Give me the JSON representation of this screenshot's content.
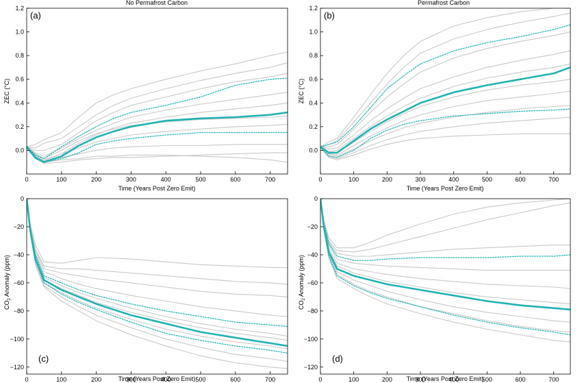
{
  "colors": {
    "ensemble": "#c8c8c8",
    "median": "#20b2b2",
    "axis": "#000000"
  },
  "chart_data": [
    {
      "id": "a",
      "type": "line",
      "panel_label": "(a)",
      "title": "No Permafrost Carbon",
      "xlabel": "Time (Years Post Zero Emit)",
      "ylabel": "ZEC (°C)",
      "xlim": [
        0,
        750
      ],
      "ylim": [
        -0.2,
        1.2
      ],
      "xticks": [
        0,
        100,
        200,
        300,
        400,
        500,
        600,
        700
      ],
      "yticks": [
        0.0,
        0.2,
        0.4,
        0.6,
        0.8,
        1.0,
        1.2
      ],
      "ytick_labels": [
        "0.0",
        "0.2",
        "0.4",
        "0.6",
        "0.8",
        "1.0",
        "1.2"
      ],
      "x": [
        0,
        25,
        50,
        100,
        150,
        200,
        250,
        300,
        400,
        500,
        600,
        700,
        750
      ],
      "series": [
        {
          "style": "median",
          "values": [
            0.03,
            -0.06,
            -0.1,
            -0.05,
            0.04,
            0.11,
            0.16,
            0.2,
            0.25,
            0.27,
            0.28,
            0.3,
            0.32
          ]
        },
        {
          "style": "bound",
          "values": [
            0.03,
            -0.04,
            -0.07,
            0.03,
            0.12,
            0.2,
            0.27,
            0.32,
            0.38,
            0.45,
            0.55,
            0.6,
            0.61
          ]
        },
        {
          "style": "bound",
          "values": [
            0.02,
            -0.07,
            -0.1,
            -0.07,
            -0.02,
            0.05,
            0.08,
            0.1,
            0.13,
            0.15,
            0.15,
            0.15,
            0.15
          ]
        },
        {
          "style": "ensemble",
          "values": [
            0.03,
            0.05,
            0.09,
            0.15,
            0.28,
            0.4,
            0.47,
            0.52,
            0.6,
            0.67,
            0.73,
            0.8,
            0.83
          ]
        },
        {
          "style": "ensemble",
          "values": [
            0.03,
            0.02,
            0.06,
            0.1,
            0.2,
            0.3,
            0.38,
            0.44,
            0.52,
            0.59,
            0.65,
            0.7,
            0.74
          ]
        },
        {
          "style": "ensemble",
          "values": [
            0.03,
            0.0,
            0.0,
            0.05,
            0.15,
            0.25,
            0.32,
            0.38,
            0.45,
            0.52,
            0.58,
            0.62,
            0.65
          ]
        },
        {
          "style": "ensemble",
          "values": [
            0.03,
            -0.02,
            -0.05,
            0.02,
            0.1,
            0.17,
            0.23,
            0.28,
            0.34,
            0.39,
            0.43,
            0.47,
            0.49
          ]
        },
        {
          "style": "ensemble",
          "values": [
            0.03,
            -0.04,
            -0.08,
            -0.03,
            0.06,
            0.13,
            0.19,
            0.23,
            0.28,
            0.32,
            0.35,
            0.38,
            0.4
          ]
        },
        {
          "style": "ensemble",
          "values": [
            0.03,
            -0.03,
            -0.07,
            0.0,
            0.08,
            0.14,
            0.18,
            0.21,
            0.24,
            0.26,
            0.27,
            0.28,
            0.29
          ]
        },
        {
          "style": "ensemble",
          "values": [
            0.03,
            -0.05,
            -0.09,
            -0.03,
            0.02,
            0.07,
            0.1,
            0.13,
            0.16,
            0.18,
            0.2,
            0.21,
            0.22
          ]
        },
        {
          "style": "ensemble",
          "values": [
            0.02,
            -0.05,
            -0.09,
            -0.06,
            -0.03,
            0.0,
            0.02,
            0.03,
            0.04,
            0.04,
            0.05,
            0.05,
            0.05
          ]
        },
        {
          "style": "ensemble",
          "values": [
            0.02,
            -0.06,
            -0.1,
            -0.08,
            -0.07,
            -0.05,
            -0.05,
            -0.04,
            -0.04,
            -0.05,
            -0.06,
            -0.08,
            -0.1
          ]
        },
        {
          "style": "ensemble",
          "values": [
            0.02,
            -0.07,
            -0.11,
            -0.1,
            -0.08,
            -0.07,
            -0.06,
            -0.06,
            -0.05,
            -0.04,
            -0.03,
            -0.02,
            -0.02
          ]
        }
      ]
    },
    {
      "id": "b",
      "type": "line",
      "panel_label": "(b)",
      "title": "Permafrost Carbon",
      "xlabel": "Time (Years Post Zero Emit)",
      "ylabel": "ZEC (°C)",
      "xlim": [
        0,
        750
      ],
      "ylim": [
        -0.2,
        1.2
      ],
      "xticks": [
        0,
        100,
        200,
        300,
        400,
        500,
        600,
        700
      ],
      "yticks": [
        0.0,
        0.2,
        0.4,
        0.6,
        0.8,
        1.0,
        1.2
      ],
      "ytick_labels": [
        "0.0",
        "0.2",
        "0.4",
        "0.6",
        "0.8",
        "1.0",
        "1.2"
      ],
      "x": [
        0,
        25,
        50,
        100,
        150,
        200,
        250,
        300,
        400,
        500,
        600,
        700,
        750
      ],
      "series": [
        {
          "style": "median",
          "values": [
            0.03,
            -0.02,
            -0.02,
            0.08,
            0.18,
            0.26,
            0.33,
            0.4,
            0.49,
            0.55,
            0.6,
            0.65,
            0.7
          ]
        },
        {
          "style": "bound",
          "values": [
            0.03,
            0.05,
            0.07,
            0.2,
            0.36,
            0.52,
            0.63,
            0.73,
            0.84,
            0.91,
            0.96,
            1.02,
            1.06
          ]
        },
        {
          "style": "bound",
          "values": [
            0.03,
            -0.05,
            -0.06,
            0.0,
            0.1,
            0.17,
            0.22,
            0.25,
            0.29,
            0.31,
            0.33,
            0.34,
            0.35
          ]
        },
        {
          "style": "ensemble",
          "values": [
            0.03,
            0.07,
            0.1,
            0.28,
            0.47,
            0.65,
            0.8,
            0.92,
            1.05,
            1.12,
            1.17,
            1.2,
            1.2
          ]
        },
        {
          "style": "ensemble",
          "values": [
            0.03,
            0.05,
            0.08,
            0.24,
            0.4,
            0.56,
            0.7,
            0.82,
            0.94,
            1.02,
            1.08,
            1.13,
            1.16
          ]
        },
        {
          "style": "ensemble",
          "values": [
            0.03,
            0.03,
            0.05,
            0.18,
            0.32,
            0.45,
            0.56,
            0.66,
            0.78,
            0.86,
            0.92,
            0.97,
            1.0
          ]
        },
        {
          "style": "ensemble",
          "values": [
            0.03,
            0.01,
            0.02,
            0.13,
            0.25,
            0.35,
            0.44,
            0.52,
            0.62,
            0.7,
            0.76,
            0.81,
            0.84
          ]
        },
        {
          "style": "ensemble",
          "values": [
            0.03,
            -0.01,
            0.0,
            0.1,
            0.2,
            0.29,
            0.37,
            0.44,
            0.54,
            0.61,
            0.66,
            0.7,
            0.73
          ]
        },
        {
          "style": "ensemble",
          "values": [
            0.03,
            -0.02,
            -0.02,
            0.07,
            0.16,
            0.24,
            0.31,
            0.37,
            0.45,
            0.51,
            0.55,
            0.58,
            0.6
          ]
        },
        {
          "style": "ensemble",
          "values": [
            0.03,
            -0.03,
            -0.04,
            0.04,
            0.12,
            0.19,
            0.25,
            0.3,
            0.37,
            0.42,
            0.45,
            0.48,
            0.5
          ]
        },
        {
          "style": "ensemble",
          "values": [
            0.03,
            -0.04,
            -0.05,
            0.01,
            0.08,
            0.14,
            0.19,
            0.23,
            0.28,
            0.32,
            0.35,
            0.37,
            0.38
          ]
        },
        {
          "style": "ensemble",
          "values": [
            0.03,
            -0.05,
            -0.07,
            -0.02,
            0.04,
            0.09,
            0.13,
            0.16,
            0.2,
            0.23,
            0.25,
            0.27,
            0.28
          ]
        },
        {
          "style": "ensemble",
          "values": [
            0.02,
            -0.06,
            -0.08,
            -0.04,
            0.01,
            0.05,
            0.08,
            0.1,
            0.12,
            0.13,
            0.14,
            0.14,
            0.14
          ]
        }
      ]
    },
    {
      "id": "c",
      "type": "line",
      "panel_label": "(c)",
      "title": "",
      "xlabel": "Time (Years Post Zero Emit)",
      "ylabel": "CO2 Anomaly (ppm)",
      "xlim": [
        0,
        750
      ],
      "ylim": [
        -125,
        0
      ],
      "xticks": [
        0,
        100,
        200,
        300,
        400,
        500,
        600,
        700
      ],
      "yticks": [
        -120,
        -100,
        -80,
        -60,
        -40,
        -20,
        0
      ],
      "ytick_labels": [
        "−120",
        "−100",
        "−80",
        "−60",
        "−40",
        "−20",
        "0"
      ],
      "x": [
        0,
        10,
        25,
        50,
        100,
        150,
        200,
        300,
        400,
        500,
        600,
        700,
        750
      ],
      "series": [
        {
          "style": "median",
          "values": [
            0,
            -22,
            -43,
            -58,
            -65,
            -70,
            -75,
            -83,
            -89,
            -95,
            -99,
            -103,
            -105
          ]
        },
        {
          "style": "bound",
          "values": [
            0,
            -20,
            -40,
            -55,
            -60,
            -65,
            -69,
            -75,
            -80,
            -84,
            -88,
            -90,
            -91
          ]
        },
        {
          "style": "bound",
          "values": [
            0,
            -23,
            -44,
            -60,
            -68,
            -74,
            -79,
            -88,
            -96,
            -101,
            -105,
            -108,
            -110
          ]
        },
        {
          "style": "ensemble",
          "values": [
            0,
            -18,
            -33,
            -45,
            -46,
            -44,
            -42,
            -43,
            -45,
            -47,
            -48,
            -49,
            -49
          ]
        },
        {
          "style": "ensemble",
          "values": [
            0,
            -19,
            -36,
            -48,
            -50,
            -50,
            -51,
            -53,
            -55,
            -57,
            -59,
            -60,
            -61
          ]
        },
        {
          "style": "ensemble",
          "values": [
            0,
            -19,
            -37,
            -50,
            -53,
            -55,
            -57,
            -60,
            -63,
            -66,
            -68,
            -69,
            -70
          ]
        },
        {
          "style": "ensemble",
          "values": [
            0,
            -20,
            -39,
            -52,
            -57,
            -61,
            -64,
            -69,
            -73,
            -77,
            -80,
            -83,
            -84
          ]
        },
        {
          "style": "ensemble",
          "values": [
            0,
            -21,
            -41,
            -56,
            -62,
            -67,
            -71,
            -78,
            -84,
            -89,
            -93,
            -96,
            -98
          ]
        },
        {
          "style": "ensemble",
          "values": [
            0,
            -22,
            -42,
            -58,
            -64,
            -69,
            -74,
            -81,
            -87,
            -92,
            -96,
            -99,
            -101
          ]
        },
        {
          "style": "ensemble",
          "values": [
            0,
            -23,
            -44,
            -60,
            -67,
            -73,
            -78,
            -86,
            -93,
            -98,
            -102,
            -105,
            -107
          ]
        },
        {
          "style": "ensemble",
          "values": [
            0,
            -24,
            -46,
            -62,
            -70,
            -77,
            -83,
            -92,
            -100,
            -106,
            -111,
            -114,
            -116
          ]
        },
        {
          "style": "ensemble",
          "values": [
            0,
            -25,
            -47,
            -63,
            -73,
            -80,
            -87,
            -97,
            -105,
            -112,
            -117,
            -120,
            -121
          ]
        }
      ]
    },
    {
      "id": "d",
      "type": "line",
      "panel_label": "(d)",
      "title": "",
      "xlabel": "Time (Years Post Zero Emit)",
      "ylabel": "CO2 Anomaly (ppm)",
      "xlim": [
        0,
        750
      ],
      "ylim": [
        -125,
        0
      ],
      "xticks": [
        0,
        100,
        200,
        300,
        400,
        500,
        600,
        700
      ],
      "yticks": [
        -120,
        -100,
        -80,
        -60,
        -40,
        -20,
        0
      ],
      "ytick_labels": [
        "−120",
        "−100",
        "−80",
        "−60",
        "−40",
        "−20",
        "0"
      ],
      "x": [
        0,
        10,
        25,
        50,
        100,
        150,
        200,
        300,
        400,
        500,
        600,
        700,
        750
      ],
      "series": [
        {
          "style": "median",
          "values": [
            0,
            -20,
            -38,
            -50,
            -55,
            -58,
            -61,
            -65,
            -69,
            -73,
            -76,
            -78,
            -79
          ]
        },
        {
          "style": "bound",
          "values": [
            0,
            -17,
            -32,
            -41,
            -44,
            -44,
            -43,
            -42,
            -42,
            -42,
            -41,
            -41,
            -40
          ]
        },
        {
          "style": "bound",
          "values": [
            0,
            -21,
            -41,
            -55,
            -62,
            -67,
            -71,
            -77,
            -83,
            -88,
            -92,
            -95,
            -97
          ]
        },
        {
          "style": "ensemble",
          "values": [
            0,
            -15,
            -28,
            -35,
            -35,
            -31,
            -26,
            -18,
            -11,
            -6,
            -3,
            -1,
            0
          ]
        },
        {
          "style": "ensemble",
          "values": [
            0,
            -16,
            -30,
            -37,
            -38,
            -36,
            -33,
            -27,
            -21,
            -15,
            -10,
            -5,
            -3
          ]
        },
        {
          "style": "ensemble",
          "values": [
            0,
            -16,
            -31,
            -39,
            -41,
            -41,
            -40,
            -38,
            -36,
            -35,
            -34,
            -33,
            -33
          ]
        },
        {
          "style": "ensemble",
          "values": [
            0,
            -17,
            -33,
            -43,
            -46,
            -47,
            -48,
            -49,
            -50,
            -51,
            -51,
            -51,
            -51
          ]
        },
        {
          "style": "ensemble",
          "values": [
            0,
            -18,
            -35,
            -46,
            -50,
            -52,
            -54,
            -57,
            -59,
            -61,
            -62,
            -63,
            -64
          ]
        },
        {
          "style": "ensemble",
          "values": [
            0,
            -19,
            -37,
            -48,
            -53,
            -56,
            -59,
            -63,
            -67,
            -70,
            -72,
            -74,
            -75
          ]
        },
        {
          "style": "ensemble",
          "values": [
            0,
            -20,
            -39,
            -52,
            -58,
            -62,
            -66,
            -72,
            -77,
            -81,
            -84,
            -87,
            -88
          ]
        },
        {
          "style": "ensemble",
          "values": [
            0,
            -21,
            -40,
            -54,
            -61,
            -66,
            -70,
            -77,
            -82,
            -87,
            -91,
            -94,
            -95
          ]
        },
        {
          "style": "ensemble",
          "values": [
            0,
            -22,
            -42,
            -57,
            -64,
            -70,
            -75,
            -82,
            -88,
            -93,
            -97,
            -101,
            -102
          ]
        }
      ]
    }
  ]
}
